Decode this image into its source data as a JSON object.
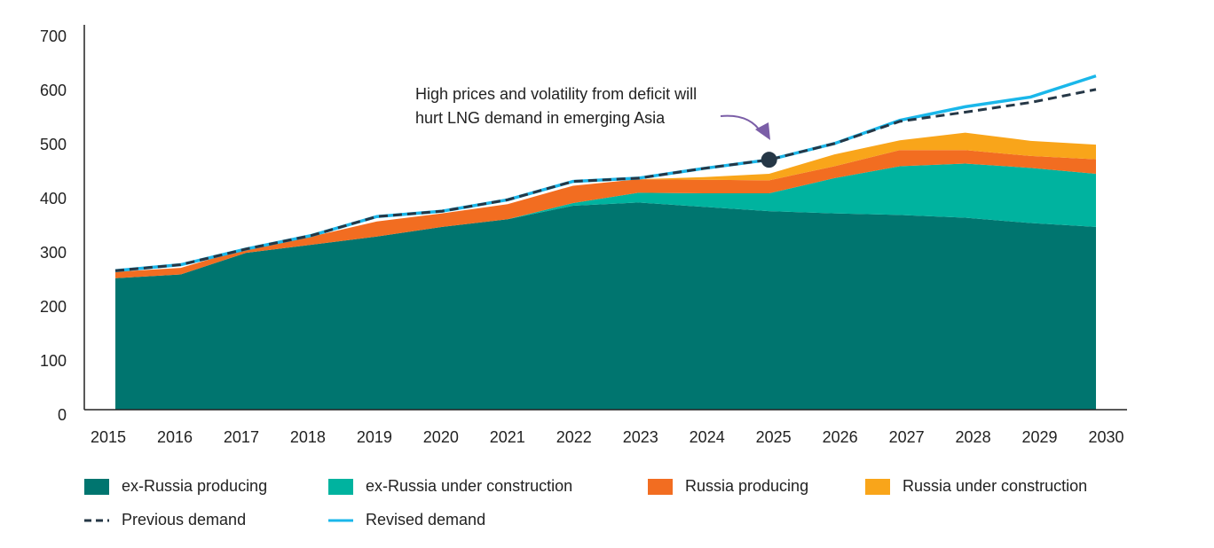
{
  "chart_data": {
    "type": "stacked-area",
    "x": [
      2015,
      2016,
      2017,
      2018,
      2019,
      2020,
      2021,
      2022,
      2023,
      2024,
      2025,
      2026,
      2027,
      2028,
      2029,
      2030
    ],
    "xlim": [
      2015,
      2030
    ],
    "xticks": [
      2015,
      2016,
      2017,
      2018,
      2019,
      2020,
      2021,
      2022,
      2023,
      2024,
      2025,
      2026,
      2027,
      2028,
      2029,
      2030
    ],
    "ylim": [
      0,
      700
    ],
    "yticks": [
      0,
      100,
      200,
      300,
      400,
      500,
      600,
      700
    ],
    "series": [
      {
        "name": "ex-Russia producing",
        "color": "#00756f",
        "kind": "area",
        "values": [
          243,
          250,
          290,
          305,
          320,
          338,
          352,
          377,
          383,
          375,
          367,
          363,
          360,
          355,
          345,
          338
        ]
      },
      {
        "name": "ex-Russia under construction",
        "color": "#00b39f",
        "kind": "area",
        "values": [
          0,
          0,
          0,
          0,
          0,
          0,
          0,
          5,
          18,
          25,
          33,
          65,
          90,
          100,
          102,
          98
        ]
      },
      {
        "name": "Russia producing",
        "color": "#f26d21",
        "kind": "area",
        "values": [
          12,
          12,
          8,
          15,
          28,
          25,
          28,
          32,
          25,
          25,
          24,
          22,
          30,
          25,
          22,
          27
        ]
      },
      {
        "name": "Russia under construction",
        "color": "#f9a51a",
        "kind": "area",
        "values": [
          0,
          0,
          0,
          0,
          0,
          0,
          0,
          0,
          0,
          5,
          12,
          22,
          18,
          32,
          28,
          27
        ]
      },
      {
        "name": "Previous demand",
        "color": "#253746",
        "kind": "line",
        "dashed": true,
        "values": [
          257,
          268,
          297,
          322,
          357,
          367,
          388,
          422,
          428,
          446,
          462,
          492,
          533,
          550,
          568,
          592
        ]
      },
      {
        "name": "Revised demand",
        "color": "#1ab7ea",
        "kind": "line",
        "dashed": false,
        "values": [
          257,
          268,
          297,
          322,
          357,
          367,
          388,
          422,
          428,
          446,
          462,
          492,
          535,
          560,
          578,
          617
        ]
      }
    ],
    "annotation": [
      "High prices and volatility from deficit will",
      "hurt LNG demand in emerging Asia"
    ],
    "annotation_color": "#7b5ea7"
  }
}
